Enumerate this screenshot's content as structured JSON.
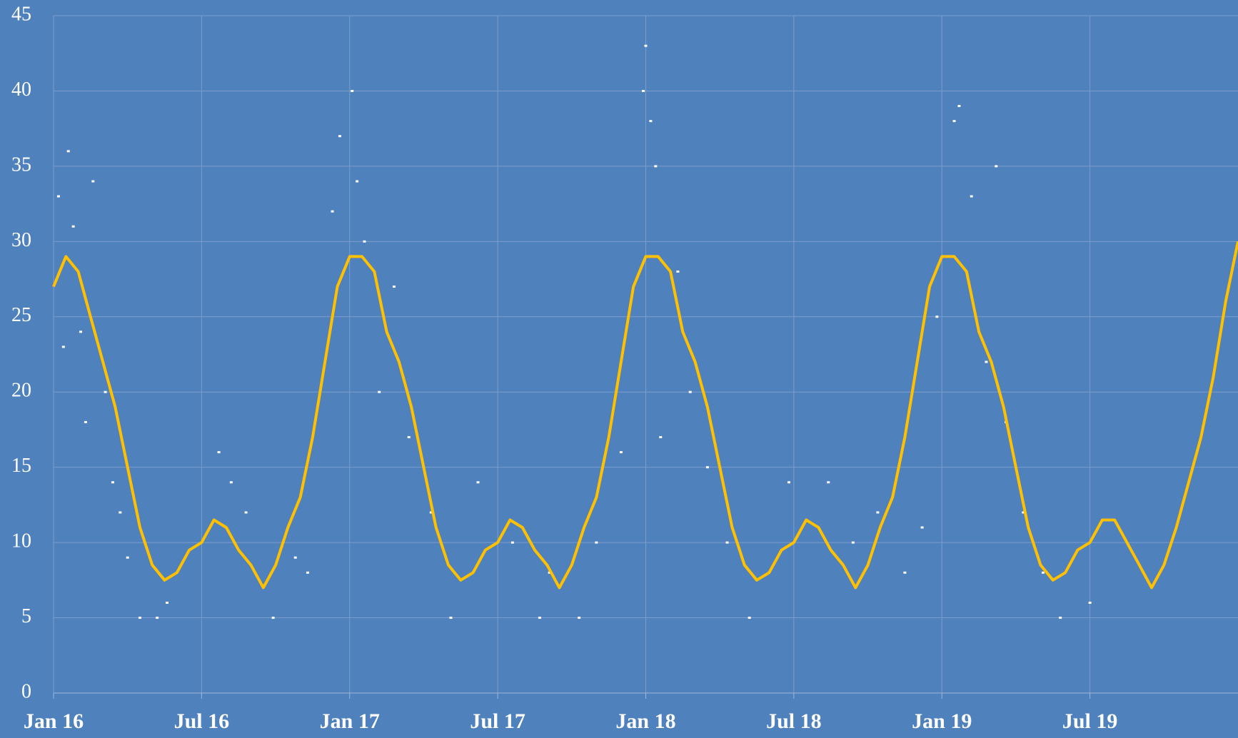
{
  "chart_data": {
    "type": "line",
    "xlim": [
      0,
      48
    ],
    "ylim": [
      0,
      45
    ],
    "yticks": [
      0,
      5,
      10,
      15,
      20,
      25,
      30,
      35,
      40,
      45
    ],
    "xticks": [
      {
        "value": 0,
        "label": "Jan 16"
      },
      {
        "value": 6,
        "label": "Jul 16"
      },
      {
        "value": 12,
        "label": "Jan 17"
      },
      {
        "value": 18,
        "label": "Jul 17"
      },
      {
        "value": 24,
        "label": "Jan 18"
      },
      {
        "value": 30,
        "label": "Jul 18"
      },
      {
        "value": 36,
        "label": "Jan 19"
      },
      {
        "value": 42,
        "label": "Jul 19"
      }
    ],
    "grid": true,
    "series": [
      {
        "color": "#ffc000",
        "x": [
          0,
          0.5,
          1,
          1.5,
          2,
          2.5,
          3,
          3.5,
          4,
          4.5,
          5,
          5.5,
          6,
          6.5,
          7,
          7.5,
          8,
          8.5,
          9,
          9.5,
          10,
          10.5,
          11,
          11.5,
          12,
          12.5,
          13,
          13.5,
          14,
          14.5,
          15,
          15.5,
          16,
          16.5,
          17,
          17.5,
          18,
          18.5,
          19,
          19.5,
          20,
          20.5,
          21,
          21.5,
          22,
          22.5,
          23,
          23.5,
          24,
          24.5,
          25,
          25.5,
          26,
          26.5,
          27,
          27.5,
          28,
          28.5,
          29,
          29.5,
          30,
          30.5,
          31,
          31.5,
          32,
          32.5,
          33,
          33.5,
          34,
          34.5,
          35,
          35.5,
          36,
          36.5,
          37,
          37.5,
          38,
          38.5,
          39,
          39.5,
          40,
          40.5,
          41,
          41.5,
          42,
          42.5,
          43,
          43.5,
          44,
          44.5,
          45,
          45.5,
          46,
          46.5,
          47,
          47.5,
          48
        ],
        "values": [
          27,
          29,
          28,
          25,
          22,
          19,
          15,
          11,
          8.5,
          7.5,
          8,
          9.5,
          10,
          11.5,
          11,
          9.5,
          8.5,
          7,
          8.5,
          11,
          13,
          17,
          22,
          27,
          29,
          29,
          28,
          24,
          22,
          19,
          15,
          11,
          8.5,
          7.5,
          8,
          9.5,
          10,
          11.5,
          11,
          9.5,
          8.5,
          7,
          8.5,
          11,
          13,
          17,
          22,
          27,
          29,
          29,
          28,
          24,
          22,
          19,
          15,
          11,
          8.5,
          7.5,
          8,
          9.5,
          10,
          11.5,
          11,
          9.5,
          8.5,
          7,
          8.5,
          11,
          13,
          17,
          22,
          27,
          29,
          29,
          28,
          24,
          22,
          19,
          15,
          11,
          8.5,
          7.5,
          8,
          9.5,
          10,
          11.5,
          11.5,
          10,
          8.5,
          7,
          8.5,
          11,
          14,
          17,
          21,
          26,
          30
        ]
      },
      {
        "color": "#ffffff",
        "mode": "points",
        "x": [
          0.2,
          0.4,
          0.6,
          0.8,
          1.1,
          1.3,
          1.6,
          2.1,
          2.4,
          2.7,
          3.0,
          3.5,
          4.2,
          4.6,
          6.7,
          7.2,
          7.8,
          8.9,
          9.8,
          10.3,
          11.3,
          11.6,
          12.1,
          12.3,
          12.6,
          13.2,
          13.8,
          14.4,
          15.3,
          16.1,
          17.2,
          18.6,
          19.7,
          20.1,
          21.3,
          22.0,
          23.0,
          23.9,
          24.0,
          24.2,
          24.4,
          24.6,
          25.3,
          25.8,
          26.5,
          27.3,
          28.2,
          29.8,
          31.4,
          32.4,
          33.4,
          34.5,
          35.2,
          35.8,
          36.5,
          36.7,
          37.2,
          37.8,
          38.2,
          38.6,
          39.3,
          40.1,
          40.8,
          42.0
        ],
        "values": [
          33,
          23,
          36,
          31,
          24,
          18,
          34,
          20,
          14,
          12,
          9,
          5,
          5,
          6,
          16,
          14,
          12,
          5,
          9,
          8,
          32,
          37,
          40,
          34,
          30,
          20,
          27,
          17,
          12,
          5,
          14,
          10,
          5,
          8,
          5,
          10,
          16,
          40,
          43,
          38,
          35,
          17,
          28,
          20,
          15,
          10,
          5,
          14,
          14,
          10,
          12,
          8,
          11,
          25,
          38,
          39,
          33,
          22,
          35,
          18,
          12,
          8,
          5,
          6
        ]
      }
    ]
  }
}
